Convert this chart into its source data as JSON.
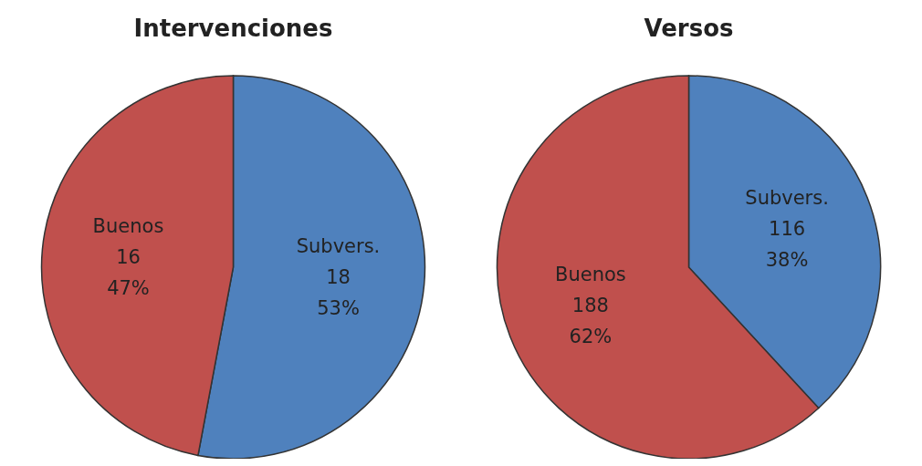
{
  "chart_data": [
    {
      "type": "pie",
      "title": "Intervenciones",
      "categories": [
        "Subvers.",
        "Buenos"
      ],
      "values": [
        18,
        16
      ],
      "colors": [
        "#4f81bd",
        "#c0504d"
      ],
      "value_labels": [
        "18\n53%",
        "16\n47%"
      ],
      "legend": false
    },
    {
      "type": "pie",
      "title": "Versos",
      "categories": [
        "Subvers.",
        "Buenos"
      ],
      "values": [
        116,
        188
      ],
      "colors": [
        "#4f81bd",
        "#c0504d"
      ],
      "value_labels": [
        "116\n38%",
        "188\n62%"
      ],
      "legend": false
    }
  ]
}
